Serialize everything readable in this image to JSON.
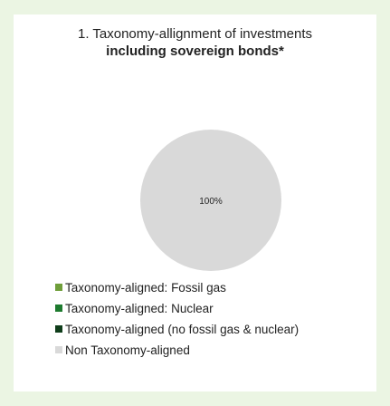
{
  "chart_data": {
    "type": "pie",
    "title_line1": "1. Taxonomy-allignment of investments",
    "title_line2": "including sovereign bonds*",
    "slices": [
      {
        "name": "Taxonomy-aligned: Fossil gas",
        "value": 0,
        "color": "#6f9e3a"
      },
      {
        "name": "Taxonomy-aligned: Nuclear",
        "value": 0,
        "color": "#1d7a2e"
      },
      {
        "name": "Taxonomy-aligned (no fossil gas & nuclear)",
        "value": 0,
        "color": "#0f3d1a"
      },
      {
        "name": "Non Taxonomy-aligned",
        "value": 100,
        "color": "#d9d9d9"
      }
    ],
    "labels": [
      "100%"
    ],
    "legend_position": "bottom-left"
  }
}
